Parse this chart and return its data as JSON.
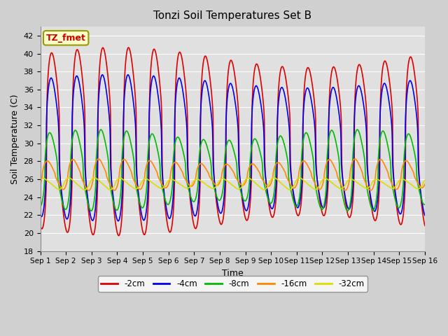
{
  "title": "Tonzi Soil Temperatures Set B",
  "xlabel": "Time",
  "ylabel": "Soil Temperature (C)",
  "ylim": [
    18,
    43
  ],
  "xlim": [
    0,
    15
  ],
  "xtick_labels": [
    "Sep 1",
    "Sep 2",
    "Sep 3",
    "Sep 4",
    "Sep 5",
    "Sep 6",
    "Sep 7",
    "Sep 8",
    "Sep 9",
    "Sep 10",
    "Sep 11",
    "Sep 12",
    "Sep 13",
    "Sep 14",
    "Sep 15",
    "Sep 16"
  ],
  "ytick_labels": [
    18,
    20,
    22,
    24,
    26,
    28,
    30,
    32,
    34,
    36,
    38,
    40,
    42
  ],
  "annotation_text": "TZ_fmet",
  "annotation_bg": "#ffffcc",
  "annotation_border": "#999900",
  "annotation_fg": "#cc0000",
  "series_order": [
    "-2cm",
    "-4cm",
    "-8cm",
    "-16cm",
    "-32cm"
  ],
  "series_colors": [
    "#dd0000",
    "#0000ee",
    "#00bb00",
    "#ff8800",
    "#dddd00"
  ],
  "fig_bg": "#d0d0d0",
  "plot_bg": "#e0e0e0",
  "grid_color": "#ffffff"
}
